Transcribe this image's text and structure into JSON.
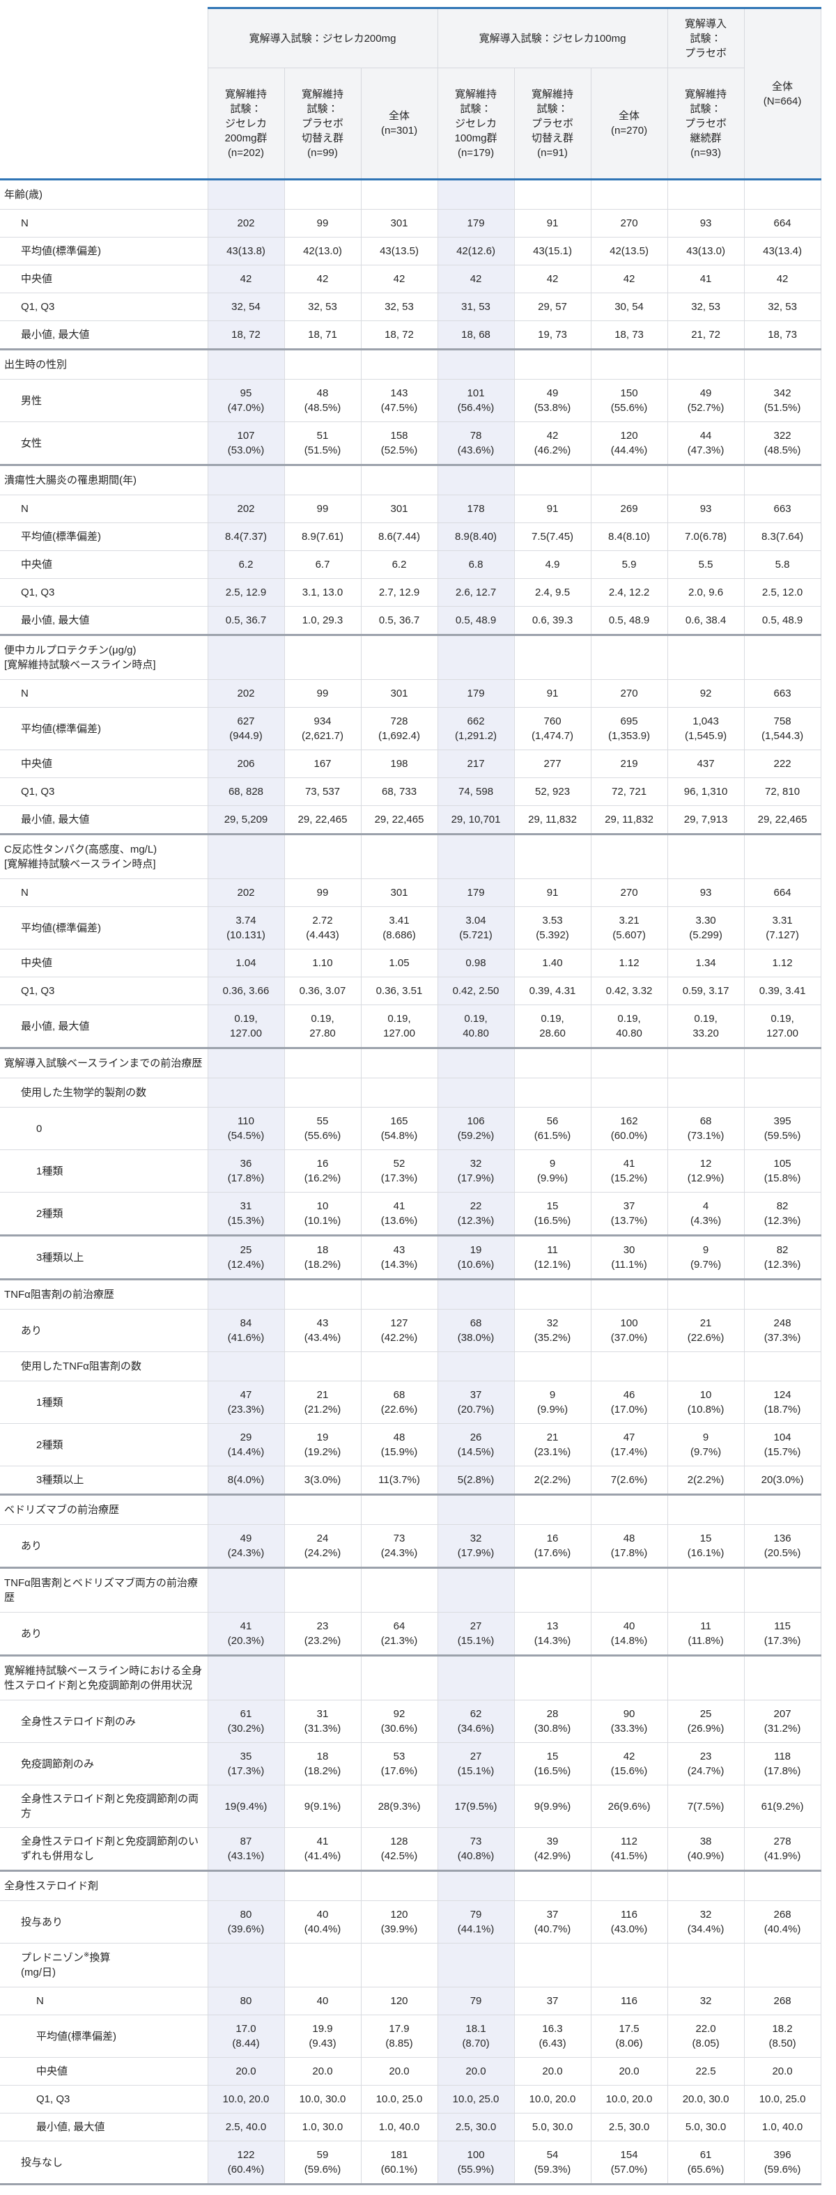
{
  "colors": {
    "accent_blue": "#2e74b5",
    "column_tint": "#edeff8",
    "header_bg": "#f3f4f6"
  },
  "table": {
    "header": {
      "groups": [
        {
          "label": "寛解導入試験：ジセレカ200mg",
          "span": 3
        },
        {
          "label": "寛解導入試験：ジセレカ100mg",
          "span": 3
        },
        {
          "label": "寛解導入\n試験：\nプラセボ",
          "span": 1
        },
        {
          "label": "全体\n(N=664)",
          "span": 1
        }
      ],
      "subheaders": [
        "寛解維持\n試験：\nジセレカ\n200mg群\n(n=202)",
        "寛解維持\n試験：\nプラセボ\n切替え群\n(n=99)",
        "全体\n(n=301)",
        "寛解維持\n試験：\nジセレカ\n100mg群\n(n=179)",
        "寛解維持\n試験：\nプラセボ\n切替え群\n(n=91)",
        "全体\n(n=270)",
        "寛解維持\n試験：\nプラセボ\n継続群\n(n=93)"
      ]
    },
    "rows": [
      {
        "label": "年齢(歳)",
        "type": "section",
        "indent": 0
      },
      {
        "label": "N",
        "type": "data",
        "indent": 1,
        "values": [
          "202",
          "99",
          "301",
          "179",
          "91",
          "270",
          "93",
          "664"
        ]
      },
      {
        "label": "平均値(標準偏差)",
        "type": "data",
        "indent": 1,
        "values": [
          "43(13.8)",
          "42(13.0)",
          "43(13.5)",
          "42(12.6)",
          "43(15.1)",
          "42(13.5)",
          "43(13.0)",
          "43(13.4)"
        ]
      },
      {
        "label": "中央値",
        "type": "data",
        "indent": 1,
        "values": [
          "42",
          "42",
          "42",
          "42",
          "42",
          "42",
          "41",
          "42"
        ]
      },
      {
        "label": "Q1, Q3",
        "type": "data",
        "indent": 1,
        "values": [
          "32, 54",
          "32, 53",
          "32, 53",
          "31, 53",
          "29, 57",
          "30, 54",
          "32, 53",
          "32, 53"
        ]
      },
      {
        "label": "最小値, 最大値",
        "type": "data",
        "indent": 1,
        "values": [
          "18, 72",
          "18, 71",
          "18, 72",
          "18, 68",
          "19, 73",
          "18, 73",
          "21, 72",
          "18, 73"
        ]
      },
      {
        "label": "出生時の性別",
        "type": "section",
        "indent": 0,
        "thick": true
      },
      {
        "label": "男性",
        "type": "data",
        "indent": 1,
        "values": [
          "95\n(47.0%)",
          "48\n(48.5%)",
          "143\n(47.5%)",
          "101\n(56.4%)",
          "49\n(53.8%)",
          "150\n(55.6%)",
          "49\n(52.7%)",
          "342\n(51.5%)"
        ]
      },
      {
        "label": "女性",
        "type": "data",
        "indent": 1,
        "values": [
          "107\n(53.0%)",
          "51\n(51.5%)",
          "158\n(52.5%)",
          "78\n(43.6%)",
          "42\n(46.2%)",
          "120\n(44.4%)",
          "44\n(47.3%)",
          "322\n(48.5%)"
        ]
      },
      {
        "label": "潰瘍性大腸炎の罹患期間(年)",
        "type": "section",
        "indent": 0,
        "thick": true
      },
      {
        "label": "N",
        "type": "data",
        "indent": 1,
        "values": [
          "202",
          "99",
          "301",
          "178",
          "91",
          "269",
          "93",
          "663"
        ]
      },
      {
        "label": "平均値(標準偏差)",
        "type": "data",
        "indent": 1,
        "values": [
          "8.4(7.37)",
          "8.9(7.61)",
          "8.6(7.44)",
          "8.9(8.40)",
          "7.5(7.45)",
          "8.4(8.10)",
          "7.0(6.78)",
          "8.3(7.64)"
        ]
      },
      {
        "label": "中央値",
        "type": "data",
        "indent": 1,
        "values": [
          "6.2",
          "6.7",
          "6.2",
          "6.8",
          "4.9",
          "5.9",
          "5.5",
          "5.8"
        ]
      },
      {
        "label": "Q1, Q3",
        "type": "data",
        "indent": 1,
        "values": [
          "2.5, 12.9",
          "3.1, 13.0",
          "2.7, 12.9",
          "2.6, 12.7",
          "2.4, 9.5",
          "2.4, 12.2",
          "2.0, 9.6",
          "2.5, 12.0"
        ]
      },
      {
        "label": "最小値, 最大値",
        "type": "data",
        "indent": 1,
        "values": [
          "0.5, 36.7",
          "1.0, 29.3",
          "0.5, 36.7",
          "0.5, 48.9",
          "0.6, 39.3",
          "0.5, 48.9",
          "0.6, 38.4",
          "0.5, 48.9"
        ]
      },
      {
        "label": "便中カルプロテクチン(μg/g)\n[寛解維持試験ベースライン時点]",
        "type": "section",
        "indent": 0,
        "thick": true
      },
      {
        "label": "N",
        "type": "data",
        "indent": 1,
        "values": [
          "202",
          "99",
          "301",
          "179",
          "91",
          "270",
          "92",
          "663"
        ]
      },
      {
        "label": "平均値(標準偏差)",
        "type": "data",
        "indent": 1,
        "values": [
          "627\n(944.9)",
          "934\n(2,621.7)",
          "728\n(1,692.4)",
          "662\n(1,291.2)",
          "760\n(1,474.7)",
          "695\n(1,353.9)",
          "1,043\n(1,545.9)",
          "758\n(1,544.3)"
        ]
      },
      {
        "label": "中央値",
        "type": "data",
        "indent": 1,
        "values": [
          "206",
          "167",
          "198",
          "217",
          "277",
          "219",
          "437",
          "222"
        ]
      },
      {
        "label": "Q1, Q3",
        "type": "data",
        "indent": 1,
        "values": [
          "68, 828",
          "73, 537",
          "68, 733",
          "74, 598",
          "52, 923",
          "72, 721",
          "96, 1,310",
          "72, 810"
        ]
      },
      {
        "label": "最小値, 最大値",
        "type": "data",
        "indent": 1,
        "values": [
          "29, 5,209",
          "29, 22,465",
          "29, 22,465",
          "29, 10,701",
          "29, 11,832",
          "29, 11,832",
          "29, 7,913",
          "29, 22,465"
        ]
      },
      {
        "label": "C反応性タンパク(高感度、mg/L)\n[寛解維持試験ベースライン時点]",
        "type": "section",
        "indent": 0,
        "thick": true
      },
      {
        "label": "N",
        "type": "data",
        "indent": 1,
        "values": [
          "202",
          "99",
          "301",
          "179",
          "91",
          "270",
          "93",
          "664"
        ]
      },
      {
        "label": "平均値(標準偏差)",
        "type": "data",
        "indent": 1,
        "values": [
          "3.74\n(10.131)",
          "2.72\n(4.443)",
          "3.41\n(8.686)",
          "3.04\n(5.721)",
          "3.53\n(5.392)",
          "3.21\n(5.607)",
          "3.30\n(5.299)",
          "3.31\n(7.127)"
        ]
      },
      {
        "label": "中央値",
        "type": "data",
        "indent": 1,
        "values": [
          "1.04",
          "1.10",
          "1.05",
          "0.98",
          "1.40",
          "1.12",
          "1.34",
          "1.12"
        ]
      },
      {
        "label": "Q1, Q3",
        "type": "data",
        "indent": 1,
        "values": [
          "0.36, 3.66",
          "0.36, 3.07",
          "0.36, 3.51",
          "0.42, 2.50",
          "0.39, 4.31",
          "0.42, 3.32",
          "0.59, 3.17",
          "0.39, 3.41"
        ]
      },
      {
        "label": "最小値, 最大値",
        "type": "data",
        "indent": 1,
        "values": [
          "0.19,\n127.00",
          "0.19,\n27.80",
          "0.19,\n127.00",
          "0.19,\n40.80",
          "0.19,\n28.60",
          "0.19,\n40.80",
          "0.19,\n33.20",
          "0.19,\n127.00"
        ]
      },
      {
        "label": "寛解導入試験ベースラインまでの前治療歴",
        "type": "section",
        "indent": 0,
        "thick": true
      },
      {
        "label": "使用した生物学的製剤の数",
        "type": "section",
        "indent": 1
      },
      {
        "label": "0",
        "type": "data",
        "indent": 2,
        "values": [
          "110\n(54.5%)",
          "55\n(55.6%)",
          "165\n(54.8%)",
          "106\n(59.2%)",
          "56\n(61.5%)",
          "162\n(60.0%)",
          "68\n(73.1%)",
          "395\n(59.5%)"
        ]
      },
      {
        "label": "1種類",
        "type": "data",
        "indent": 2,
        "values": [
          "36\n(17.8%)",
          "16\n(16.2%)",
          "52\n(17.3%)",
          "32\n(17.9%)",
          "9\n(9.9%)",
          "41\n(15.2%)",
          "12\n(12.9%)",
          "105\n(15.8%)"
        ]
      },
      {
        "label": "2種類",
        "type": "data",
        "indent": 2,
        "values": [
          "31\n(15.3%)",
          "10\n(10.1%)",
          "41\n(13.6%)",
          "22\n(12.3%)",
          "15\n(16.5%)",
          "37\n(13.7%)",
          "4\n(4.3%)",
          "82\n(12.3%)"
        ]
      },
      {
        "label": "3種類以上",
        "type": "data",
        "indent": 2,
        "thick": true,
        "values": [
          "25\n(12.4%)",
          "18\n(18.2%)",
          "43\n(14.3%)",
          "19\n(10.6%)",
          "11\n(12.1%)",
          "30\n(11.1%)",
          "9\n(9.7%)",
          "82\n(12.3%)"
        ]
      },
      {
        "label": "TNFα阻害剤の前治療歴",
        "type": "section",
        "indent": 0,
        "thick": true
      },
      {
        "label": "あり",
        "type": "data",
        "indent": 1,
        "values": [
          "84\n(41.6%)",
          "43\n(43.4%)",
          "127\n(42.2%)",
          "68\n(38.0%)",
          "32\n(35.2%)",
          "100\n(37.0%)",
          "21\n(22.6%)",
          "248\n(37.3%)"
        ]
      },
      {
        "label": "使用したTNFα阻害剤の数",
        "type": "section",
        "indent": 1
      },
      {
        "label": "1種類",
        "type": "data",
        "indent": 2,
        "values": [
          "47\n(23.3%)",
          "21\n(21.2%)",
          "68\n(22.6%)",
          "37\n(20.7%)",
          "9\n(9.9%)",
          "46\n(17.0%)",
          "10\n(10.8%)",
          "124\n(18.7%)"
        ]
      },
      {
        "label": "2種類",
        "type": "data",
        "indent": 2,
        "values": [
          "29\n(14.4%)",
          "19\n(19.2%)",
          "48\n(15.9%)",
          "26\n(14.5%)",
          "21\n(23.1%)",
          "47\n(17.4%)",
          "9\n(9.7%)",
          "104\n(15.7%)"
        ]
      },
      {
        "label": "3種類以上",
        "type": "data",
        "indent": 2,
        "values": [
          "8(4.0%)",
          "3(3.0%)",
          "11(3.7%)",
          "5(2.8%)",
          "2(2.2%)",
          "7(2.6%)",
          "2(2.2%)",
          "20(3.0%)"
        ]
      },
      {
        "label": "ベドリズマブの前治療歴",
        "type": "section",
        "indent": 0,
        "thick": true
      },
      {
        "label": "あり",
        "type": "data",
        "indent": 1,
        "values": [
          "49\n(24.3%)",
          "24\n(24.2%)",
          "73\n(24.3%)",
          "32\n(17.9%)",
          "16\n(17.6%)",
          "48\n(17.8%)",
          "15\n(16.1%)",
          "136\n(20.5%)"
        ]
      },
      {
        "label": "TNFα阻害剤とベドリズマブ両方の前治療歴",
        "type": "section",
        "indent": 0,
        "thick": true
      },
      {
        "label": "あり",
        "type": "data",
        "indent": 1,
        "values": [
          "41\n(20.3%)",
          "23\n(23.2%)",
          "64\n(21.3%)",
          "27\n(15.1%)",
          "13\n(14.3%)",
          "40\n(14.8%)",
          "11\n(11.8%)",
          "115\n(17.3%)"
        ]
      },
      {
        "label": "寛解維持試験ベースライン時における全身性ステロイド剤と免疫調節剤の併用状況",
        "type": "section",
        "indent": 0,
        "thick": true
      },
      {
        "label": "全身性ステロイド剤のみ",
        "type": "data",
        "indent": 1,
        "values": [
          "61\n(30.2%)",
          "31\n(31.3%)",
          "92\n(30.6%)",
          "62\n(34.6%)",
          "28\n(30.8%)",
          "90\n(33.3%)",
          "25\n(26.9%)",
          "207\n(31.2%)"
        ]
      },
      {
        "label": "免疫調節剤のみ",
        "type": "data",
        "indent": 1,
        "values": [
          "35\n(17.3%)",
          "18\n(18.2%)",
          "53\n(17.6%)",
          "27\n(15.1%)",
          "15\n(16.5%)",
          "42\n(15.6%)",
          "23\n(24.7%)",
          "118\n(17.8%)"
        ]
      },
      {
        "label": "全身性ステロイド剤と免疫調節剤の両方",
        "type": "data",
        "indent": 1,
        "values": [
          "19(9.4%)",
          "9(9.1%)",
          "28(9.3%)",
          "17(9.5%)",
          "9(9.9%)",
          "26(9.6%)",
          "7(7.5%)",
          "61(9.2%)"
        ]
      },
      {
        "label": "全身性ステロイド剤と免疫調節剤のいずれも併用なし",
        "type": "data",
        "indent": 1,
        "values": [
          "87\n(43.1%)",
          "41\n(41.4%)",
          "128\n(42.5%)",
          "73\n(40.8%)",
          "39\n(42.9%)",
          "112\n(41.5%)",
          "38\n(40.9%)",
          "278\n(41.9%)"
        ]
      },
      {
        "label": "全身性ステロイド剤",
        "type": "section",
        "indent": 0,
        "thick": true
      },
      {
        "label": "投与あり",
        "type": "data",
        "indent": 1,
        "values": [
          "80\n(39.6%)",
          "40\n(40.4%)",
          "120\n(39.9%)",
          "79\n(44.1%)",
          "37\n(40.7%)",
          "116\n(43.0%)",
          "32\n(34.4%)",
          "268\n(40.4%)"
        ]
      },
      {
        "label": "プレドニゾン※換算\n(mg/日)",
        "type": "section",
        "indent": 1
      },
      {
        "label": "N",
        "type": "data",
        "indent": 2,
        "values": [
          "80",
          "40",
          "120",
          "79",
          "37",
          "116",
          "32",
          "268"
        ]
      },
      {
        "label": "平均値(標準偏差)",
        "type": "data",
        "indent": 2,
        "values": [
          "17.0\n(8.44)",
          "19.9\n(9.43)",
          "17.9\n(8.85)",
          "18.1\n(8.70)",
          "16.3\n(6.43)",
          "17.5\n(8.06)",
          "22.0\n(8.05)",
          "18.2\n(8.50)"
        ]
      },
      {
        "label": "中央値",
        "type": "data",
        "indent": 2,
        "values": [
          "20.0",
          "20.0",
          "20.0",
          "20.0",
          "20.0",
          "20.0",
          "22.5",
          "20.0"
        ]
      },
      {
        "label": "Q1, Q3",
        "type": "data",
        "indent": 2,
        "values": [
          "10.0, 20.0",
          "10.0, 30.0",
          "10.0, 25.0",
          "10.0, 25.0",
          "10.0, 20.0",
          "10.0, 20.0",
          "20.0, 30.0",
          "10.0, 25.0"
        ]
      },
      {
        "label": "最小値, 最大値",
        "type": "data",
        "indent": 2,
        "values": [
          "2.5, 40.0",
          "1.0, 30.0",
          "1.0, 40.0",
          "2.5, 30.0",
          "5.0, 30.0",
          "2.5, 30.0",
          "5.0, 30.0",
          "1.0, 40.0"
        ]
      },
      {
        "label": "投与なし",
        "type": "data",
        "indent": 1,
        "values": [
          "122\n(60.4%)",
          "59\n(59.6%)",
          "181\n(60.1%)",
          "100\n(55.9%)",
          "54\n(59.3%)",
          "154\n(57.0%)",
          "61\n(65.6%)",
          "396\n(59.6%)"
        ]
      }
    ]
  }
}
